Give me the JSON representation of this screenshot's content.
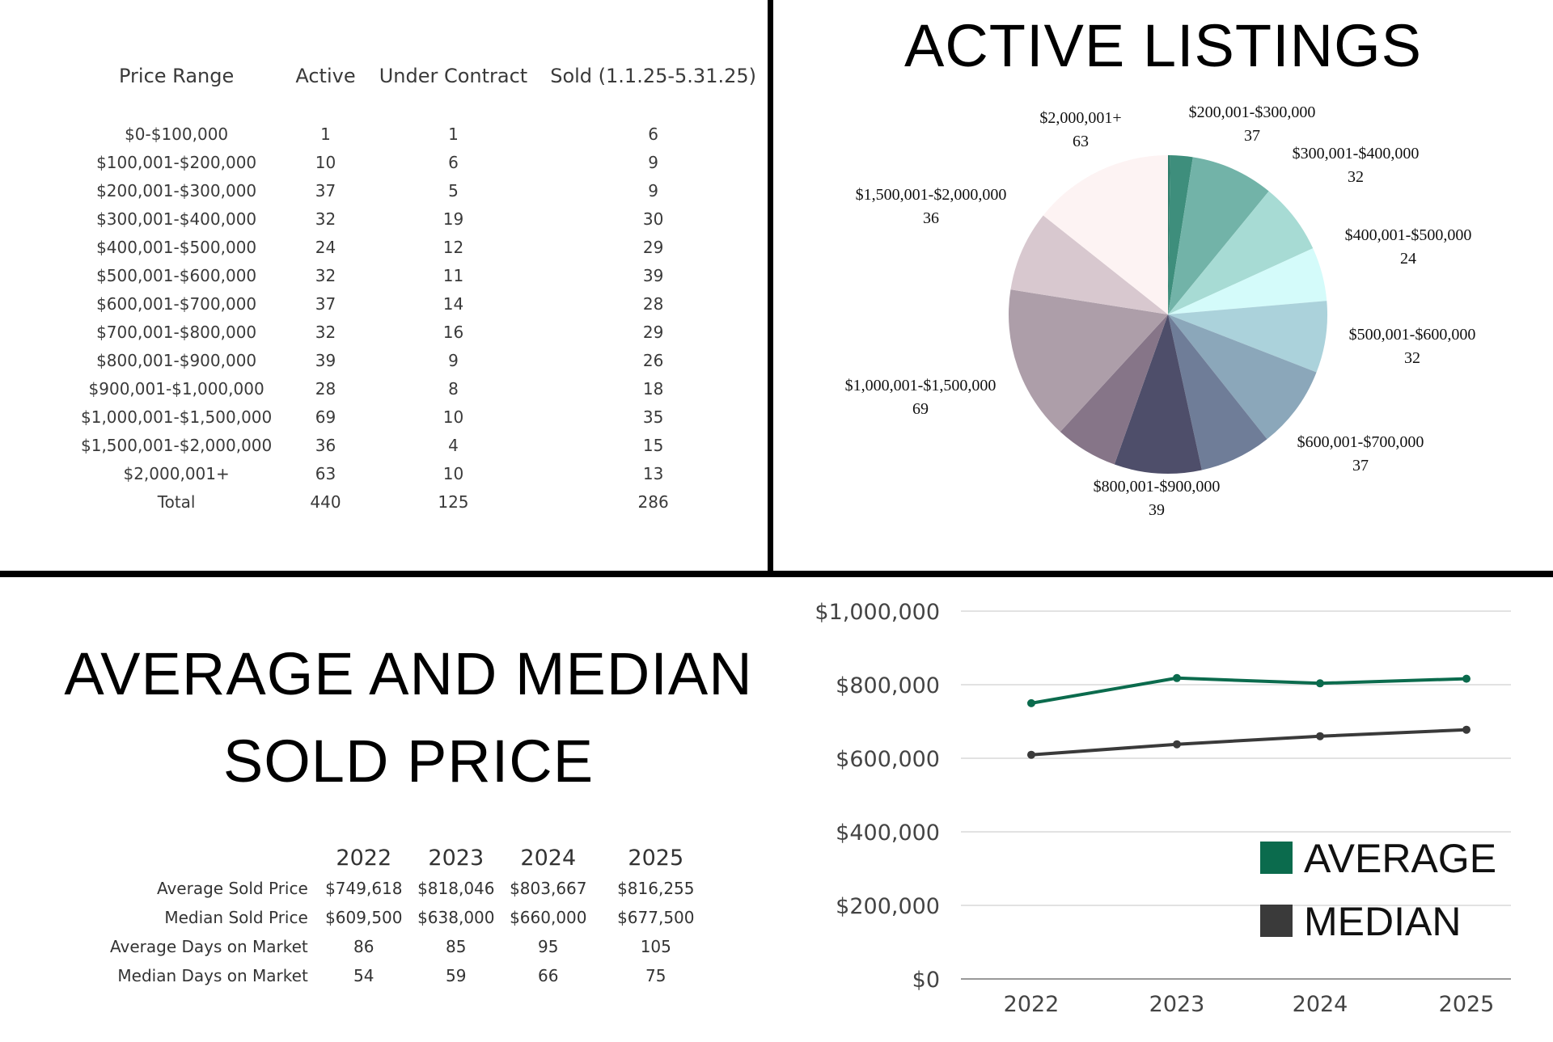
{
  "price_table": {
    "headers": [
      "Price Range",
      "Active",
      "Under Contract",
      "Sold (1.1.25-5.31.25)"
    ],
    "rows": [
      [
        "$0-$100,000",
        "1",
        "1",
        "6"
      ],
      [
        "$100,001-$200,000",
        "10",
        "6",
        "9"
      ],
      [
        "$200,001-$300,000",
        "37",
        "5",
        "9"
      ],
      [
        "$300,001-$400,000",
        "32",
        "19",
        "30"
      ],
      [
        "$400,001-$500,000",
        "24",
        "12",
        "29"
      ],
      [
        "$500,001-$600,000",
        "32",
        "11",
        "39"
      ],
      [
        "$600,001-$700,000",
        "37",
        "14",
        "28"
      ],
      [
        "$700,001-$800,000",
        "32",
        "16",
        "29"
      ],
      [
        "$800,001-$900,000",
        "39",
        "9",
        "26"
      ],
      [
        "$900,001-$1,000,000",
        "28",
        "8",
        "18"
      ],
      [
        "$1,000,001-$1,500,000",
        "69",
        "10",
        "35"
      ],
      [
        "$1,500,001-$2,000,000",
        "36",
        "4",
        "15"
      ],
      [
        "$2,000,001+",
        "63",
        "10",
        "13"
      ],
      [
        "Total",
        "440",
        "125",
        "286"
      ]
    ]
  },
  "summary_title": "AVERAGE AND MEDIAN SOLD PRICE",
  "summary_table": {
    "headers": [
      "",
      "2022",
      "2023",
      "2024",
      "2025"
    ],
    "rows": [
      [
        "Average Sold Price",
        "$749,618",
        "$818,046",
        "$803,667",
        "$816,255"
      ],
      [
        "Median Sold Price",
        "$609,500",
        "$638,000",
        "$660,000",
        "$677,500"
      ],
      [
        "Average Days on Market",
        "86",
        "85",
        "95",
        "105"
      ],
      [
        "Median Days on Market",
        "54",
        "59",
        "66",
        "75"
      ]
    ]
  },
  "chart_data": [
    {
      "type": "pie",
      "title": "ACTIVE LISTINGS",
      "categories": [
        "$0-$100,000",
        "$100,001-$200,000",
        "$200,001-$300,000",
        "$300,001-$400,000",
        "$400,001-$500,000",
        "$500,001-$600,000",
        "$600,001-$700,000",
        "$700,001-$800,000",
        "$800,001-$900,000",
        "$900,001-$1,000,000",
        "$1,000,001-$1,500,000",
        "$1,500,001-$2,000,000",
        "$2,000,001+"
      ],
      "values": [
        1,
        10,
        37,
        32,
        24,
        32,
        37,
        32,
        39,
        28,
        69,
        36,
        63
      ],
      "colors": [
        "#2e7d6b",
        "#3e8e7c",
        "#72b3a8",
        "#a7dbd4",
        "#d4fbfa",
        "#abd2db",
        "#8ba7ba",
        "#6f7d98",
        "#4e4e6a",
        "#867588",
        "#ad9ea9",
        "#d8c8cf",
        "#fdf3f3"
      ],
      "labeled": [
        {
          "name": "$2,000,001+",
          "value": "63"
        },
        {
          "name": "$200,001-$300,000",
          "value": "37"
        },
        {
          "name": "$300,001-$400,000",
          "value": "32"
        },
        {
          "name": "$400,001-$500,000",
          "value": "24"
        },
        {
          "name": "$500,001-$600,000",
          "value": "32"
        },
        {
          "name": "$600,001-$700,000",
          "value": "37"
        },
        {
          "name": "$800,001-$900,000",
          "value": "39"
        },
        {
          "name": "$1,000,001-$1,500,000",
          "value": "69"
        },
        {
          "name": "$1,500,001-$2,000,000",
          "value": "36"
        }
      ]
    },
    {
      "type": "line",
      "x": [
        "2022",
        "2023",
        "2024",
        "2025"
      ],
      "series": [
        {
          "name": "AVERAGE",
          "values": [
            749618,
            818046,
            803667,
            816255
          ],
          "color": "#0b6b4d"
        },
        {
          "name": "MEDIAN",
          "values": [
            609500,
            638000,
            660000,
            677500
          ],
          "color": "#3a3a3a"
        }
      ],
      "ylim": [
        0,
        1000000
      ],
      "yticks": [
        "$0",
        "$200,000",
        "$400,000",
        "$600,000",
        "$800,000",
        "$1,000,000"
      ],
      "grid": true,
      "legend": "bottom-right"
    }
  ]
}
